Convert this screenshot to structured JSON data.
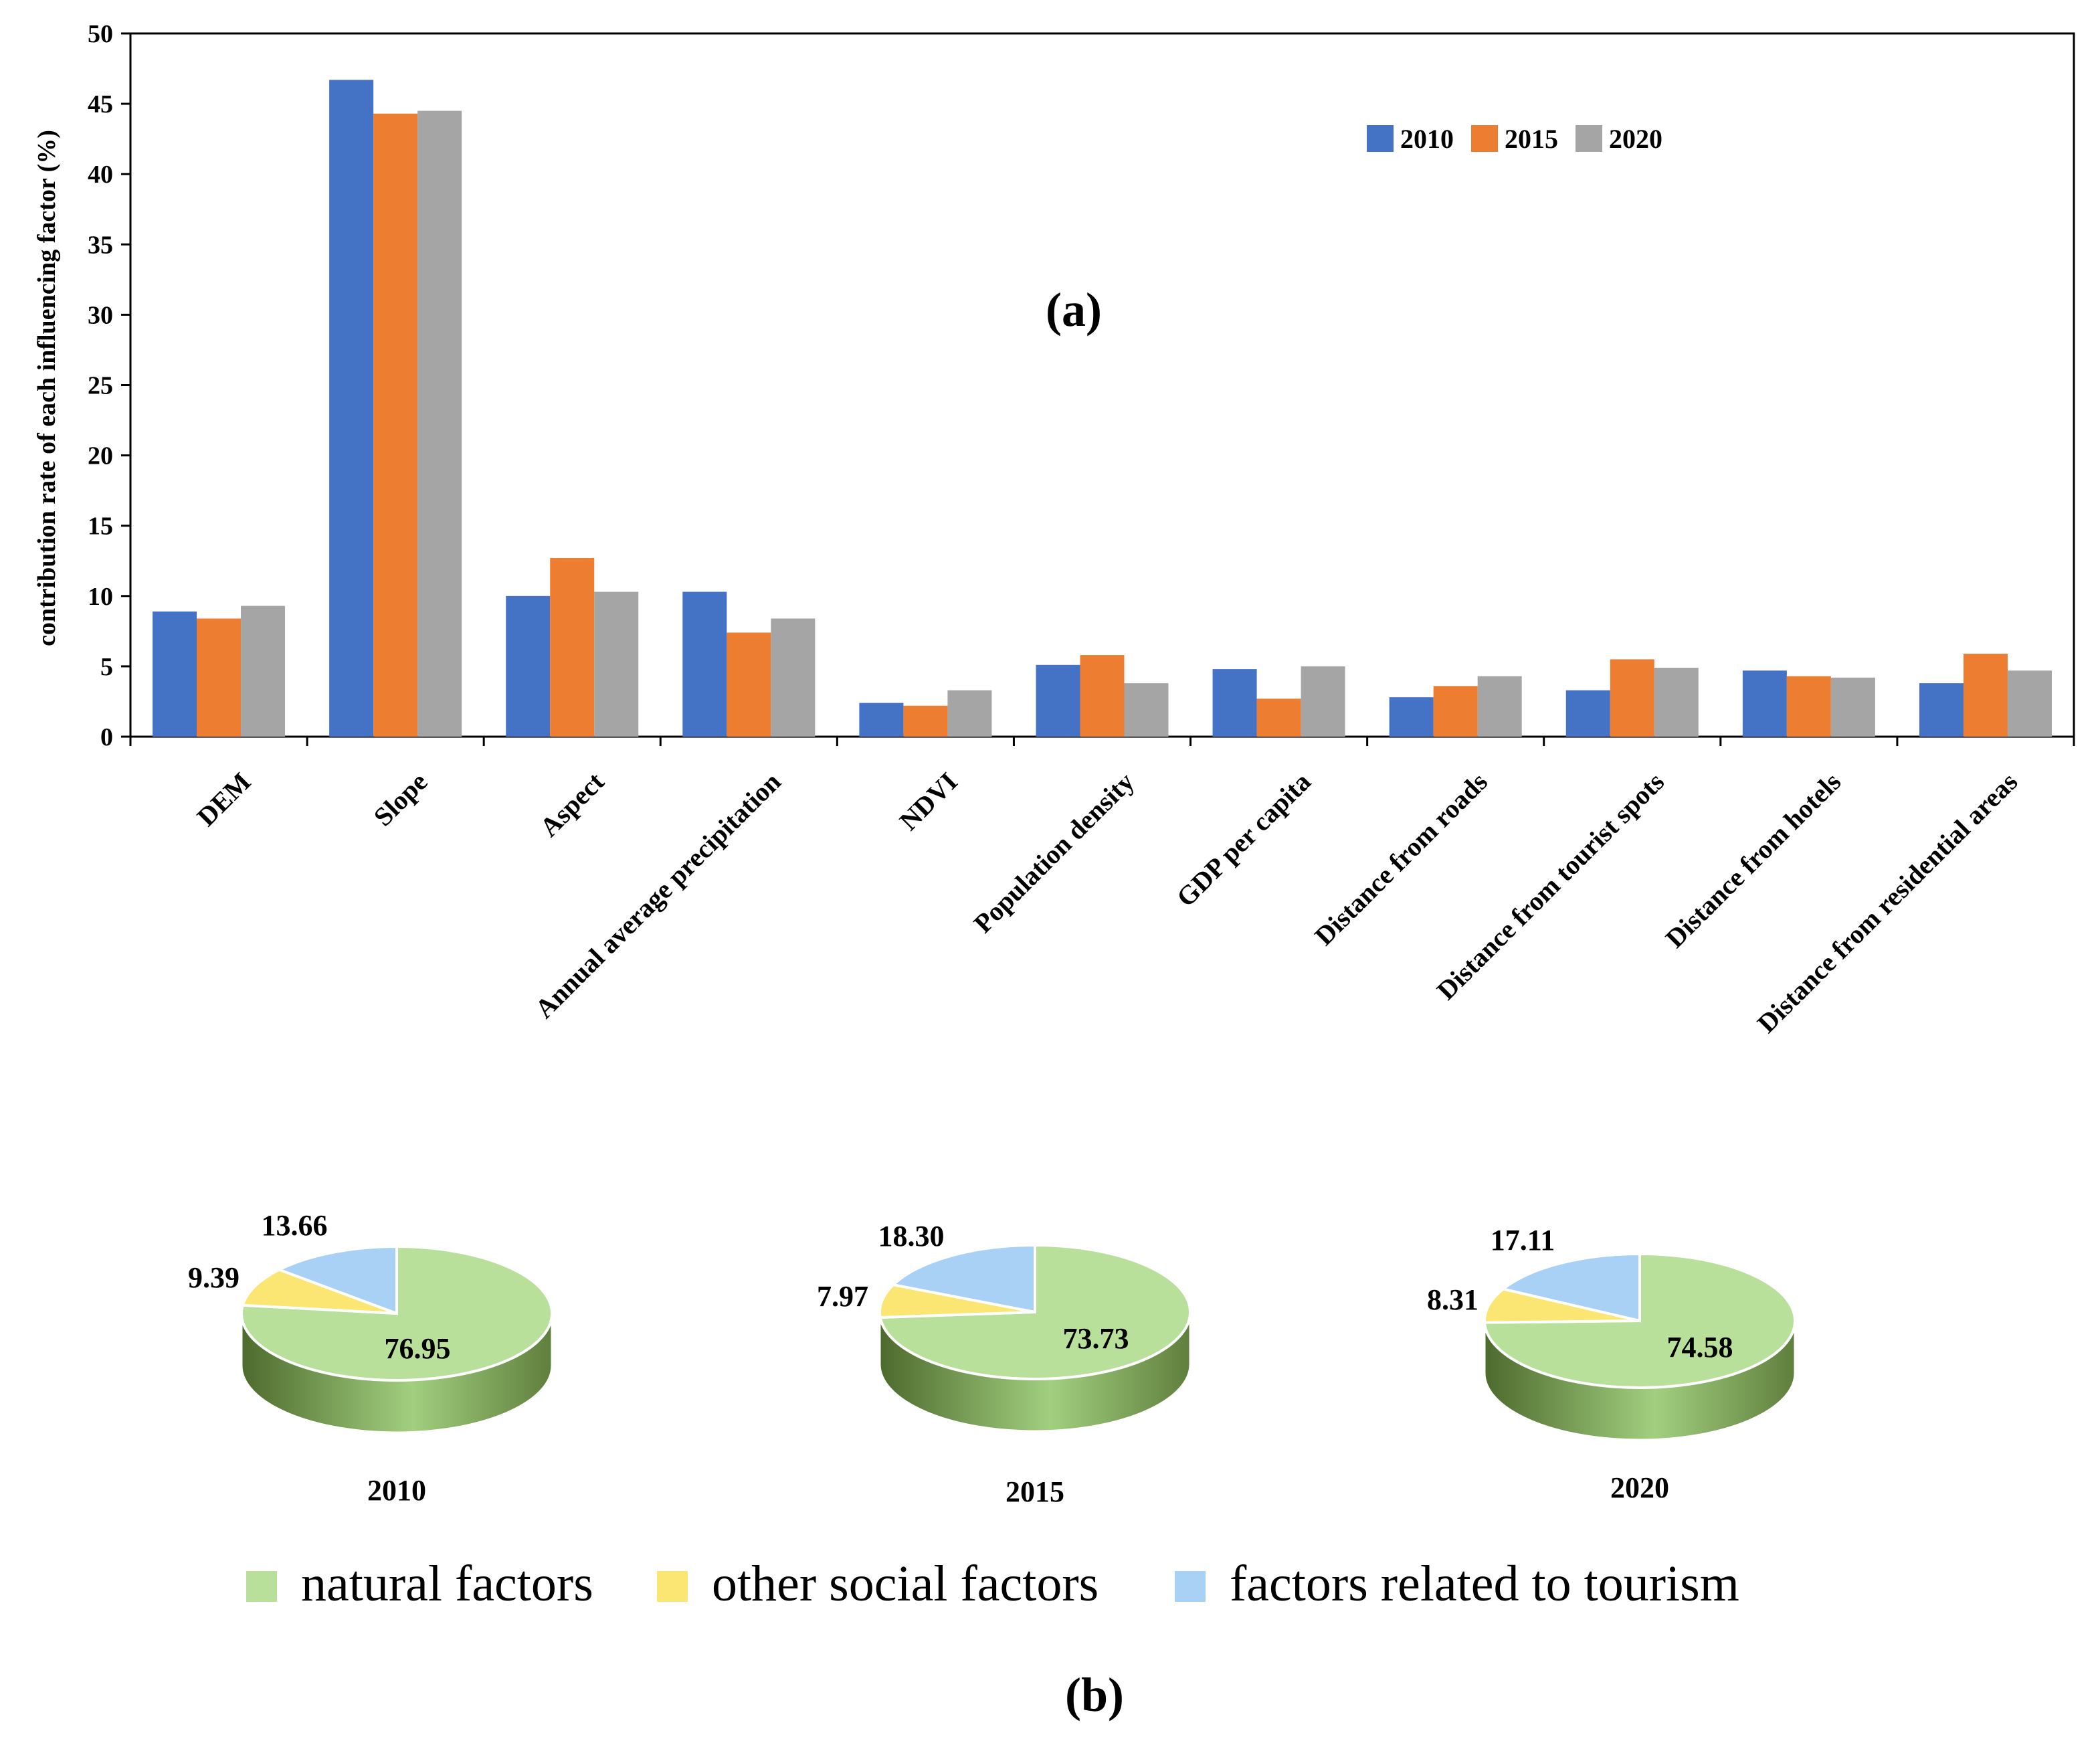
{
  "chart_data": [
    {
      "type": "bar",
      "panel_label": "(a)",
      "ylabel": "contribution rate of each influencing factor (%)",
      "xlabel": "",
      "ylim": [
        0,
        50
      ],
      "yticks": [
        0,
        5,
        10,
        15,
        20,
        25,
        30,
        35,
        40,
        45,
        50
      ],
      "grid": false,
      "legend_position": "top-right",
      "categories": [
        "DEM",
        "Slope",
        "Aspect",
        "Annual average precipitation",
        "NDVI",
        "Population density",
        "GDP per capita",
        "Distance from roads",
        "Distance from tourist spots",
        "Distance from hotels",
        "Distance from residential areas"
      ],
      "series": [
        {
          "name": "2010",
          "color": "#4472c4",
          "values": [
            8.9,
            46.7,
            10.0,
            10.3,
            2.4,
            5.1,
            4.8,
            2.8,
            3.3,
            4.7,
            3.8
          ]
        },
        {
          "name": "2015",
          "color": "#ed7d31",
          "values": [
            8.4,
            44.3,
            12.7,
            7.4,
            2.2,
            5.8,
            2.7,
            3.6,
            5.5,
            4.3,
            5.9
          ]
        },
        {
          "name": "2020",
          "color": "#a5a5a5",
          "values": [
            9.3,
            44.5,
            10.3,
            8.4,
            3.3,
            3.8,
            5.0,
            4.3,
            4.9,
            4.2,
            4.7
          ]
        }
      ]
    },
    {
      "type": "pie",
      "panel_label": "(b)",
      "legend_position": "bottom",
      "legend": [
        {
          "label": "natural factors",
          "color": "#b8e09a"
        },
        {
          "label": "other social factors",
          "color": "#fbe673"
        },
        {
          "label": "factors related to tourism",
          "color": "#a9d0f5"
        }
      ],
      "pies": [
        {
          "title": "2010",
          "slices": [
            {
              "label": "natural factors",
              "value": 76.95,
              "text": "76.95"
            },
            {
              "label": "other social factors",
              "value": 9.39,
              "text": "9.39"
            },
            {
              "label": "factors related to tourism",
              "value": 13.66,
              "text": "13.66"
            }
          ]
        },
        {
          "title": "2015",
          "slices": [
            {
              "label": "natural factors",
              "value": 73.73,
              "text": "73.73"
            },
            {
              "label": "other social factors",
              "value": 7.97,
              "text": "7.97"
            },
            {
              "label": "factors related to tourism",
              "value": 18.3,
              "text": "18.30"
            }
          ]
        },
        {
          "title": "2020",
          "slices": [
            {
              "label": "natural factors",
              "value": 74.58,
              "text": "74.58"
            },
            {
              "label": "other social factors",
              "value": 8.31,
              "text": "8.31"
            },
            {
              "label": "factors related to tourism",
              "value": 17.11,
              "text": "17.11"
            }
          ]
        }
      ]
    }
  ]
}
